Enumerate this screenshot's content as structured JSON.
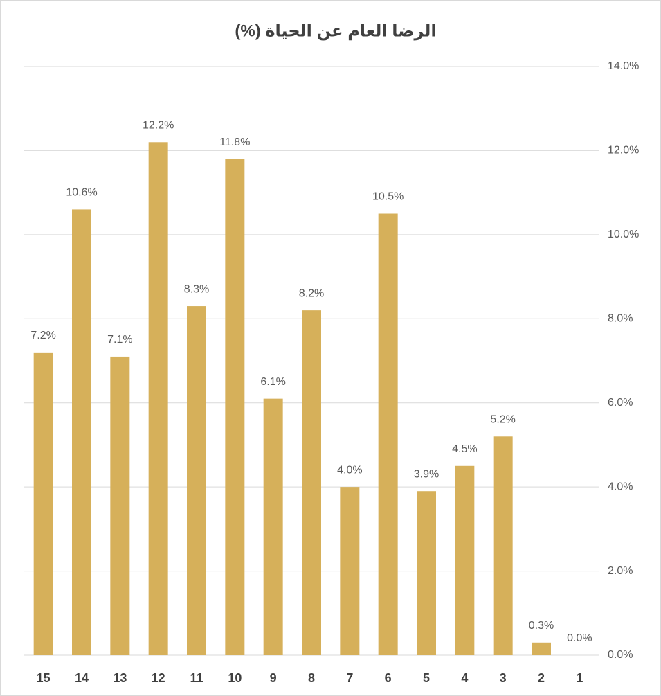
{
  "chart_data": {
    "type": "bar",
    "title": "الرضا العام عن الحياة (%)",
    "categories": [
      "15",
      "14",
      "13",
      "12",
      "11",
      "10",
      "9",
      "8",
      "7",
      "6",
      "5",
      "4",
      "3",
      "2",
      "1"
    ],
    "values": [
      7.2,
      10.6,
      7.1,
      12.2,
      8.3,
      11.8,
      6.1,
      8.2,
      4.0,
      10.5,
      3.9,
      4.5,
      5.2,
      0.3,
      0.0
    ],
    "value_labels": [
      "7.2%",
      "10.6%",
      "7.1%",
      "12.2%",
      "8.3%",
      "11.8%",
      "6.1%",
      "8.2%",
      "4.0%",
      "10.5%",
      "3.9%",
      "4.5%",
      "5.2%",
      "0.3%",
      "0.0%"
    ],
    "color": "#d6b05a",
    "ylim": [
      0,
      14
    ],
    "yticks": [
      {
        "value": 0,
        "label": "0.0%"
      },
      {
        "value": 2,
        "label": "2.0%"
      },
      {
        "value": 4,
        "label": "4.0%"
      },
      {
        "value": 6,
        "label": "6.0%"
      },
      {
        "value": 8,
        "label": "8.0%"
      },
      {
        "value": 10,
        "label": "10.0%"
      },
      {
        "value": 12,
        "label": "12.0%"
      },
      {
        "value": 14,
        "label": "14.0%"
      }
    ],
    "grid": true
  }
}
